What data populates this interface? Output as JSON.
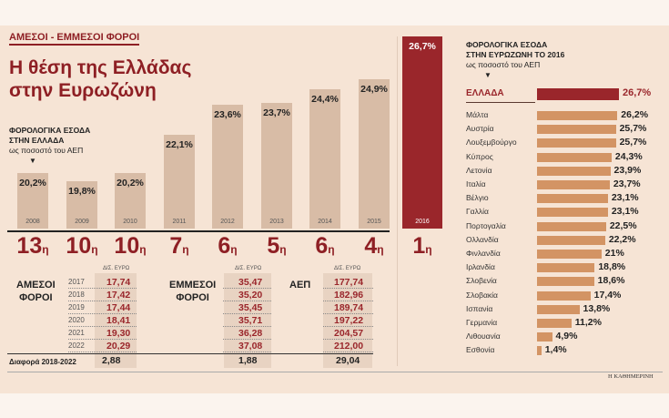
{
  "header": {
    "kicker": "ΑΜΕΣΟΙ - ΕΜΜΕΣΟΙ ΦΟΡΟΙ",
    "title": "Η θέση της Ελλάδας στην Ευρωζώνη"
  },
  "left_note": {
    "line1": "ΦΟΡΟΛΟΓΙΚΑ ΕΣΟΔΑ",
    "line2": "ΣΤΗΝ ΕΛΛΑΔΑ",
    "line3": "ως ποσοστό του ΑΕΠ",
    "arrow": "▼"
  },
  "right_note": {
    "line1": "ΦΟΡΟΛΟΓΙΚΑ ΕΣΟΔΑ",
    "line2": "ΣΤΗΝ ΕΥΡΩΖΩΝΗ ΤΟ 2016",
    "line3": "ως ποσοστό του ΑΕΠ",
    "arrow": "▼"
  },
  "chart_data": [
    {
      "type": "bar",
      "title": "Φορολογικά έσοδα στην Ελλάδα ως ποσοστό του ΑΕΠ",
      "categories": [
        "2008",
        "2009",
        "2010",
        "2011",
        "2012",
        "2013",
        "2014",
        "2015",
        "2016"
      ],
      "values": [
        20.2,
        19.8,
        20.2,
        22.1,
        23.6,
        23.7,
        24.4,
        24.9,
        26.7
      ],
      "labels": [
        "20,2%",
        "19,8%",
        "20,2%",
        "22,1%",
        "23,6%",
        "23,7%",
        "24,4%",
        "24,9%",
        "26,7%"
      ],
      "ranks": [
        "13",
        "10",
        "10",
        "7",
        "6",
        "5",
        "6",
        "4",
        "1"
      ],
      "rank_suffix": "η",
      "highlight": "2016",
      "colors": {
        "bar": "#d8bca6",
        "highlight": "#9a262b"
      }
    },
    {
      "type": "bar",
      "orientation": "horizontal",
      "title": "Φορολογικά έσοδα στην Ευρωζώνη το 2016 ως ποσοστό του ΑΕΠ",
      "categories": [
        "ΕΛΛΑΔΑ",
        "Μάλτα",
        "Αυστρία",
        "Λουξεμβούργο",
        "Κύπρος",
        "Λετονία",
        "Ιταλία",
        "Βέλγιο",
        "Γαλλία",
        "Πορτογαλία",
        "Ολλανδία",
        "Φινλανδία",
        "Ιρλανδία",
        "Σλοβενία",
        "Σλοβακία",
        "Ισπανία",
        "Γερμανία",
        "Λιθουανία",
        "Εσθονία"
      ],
      "values": [
        26.7,
        26.2,
        25.7,
        25.7,
        24.3,
        23.9,
        23.7,
        23.1,
        23.1,
        22.5,
        22.2,
        21,
        18.8,
        18.6,
        17.4,
        13.8,
        11.2,
        4.9,
        1.4
      ],
      "labels": [
        "26,7%",
        "26,2%",
        "25,7%",
        "25,7%",
        "24,3%",
        "23,9%",
        "23,7%",
        "23,1%",
        "23,1%",
        "22,5%",
        "22,2%",
        "21%",
        "18,8%",
        "18,6%",
        "17,4%",
        "13,8%",
        "11,2%",
        "4,9%",
        "1,4%"
      ],
      "highlight": "ΕΛΛΑΔΑ",
      "colors": {
        "bar": "#d39464",
        "highlight": "#9a262b"
      }
    }
  ],
  "table": {
    "unit": "ΔΙΣ. ΕΥΡΩ",
    "years": [
      "2017",
      "2018",
      "2019",
      "2020",
      "2021",
      "2022"
    ],
    "direct": {
      "label1": "ΑΜΕΣΟΙ",
      "label2": "ΦΟΡΟΙ",
      "values": [
        "17,74",
        "17,42",
        "17,44",
        "18,41",
        "19,30",
        "20,29"
      ],
      "diff": "2,88"
    },
    "indirect": {
      "label1": "ΕΜΜΕΣΟΙ",
      "label2": "ΦΟΡΟΙ",
      "values": [
        "35,47",
        "35,20",
        "35,45",
        "35,71",
        "36,28",
        "37,08"
      ],
      "diff": "1,88"
    },
    "gdp": {
      "label1": "ΑΕΠ",
      "values": [
        "177,74",
        "182,96",
        "189,74",
        "197,22",
        "204,57",
        "212,00"
      ],
      "diff": "29,04"
    },
    "diff_label": "Διαφορά 2018-2022"
  },
  "footer": {
    "brand": "Η ΚΑΘΗΜΕΡΙΝΗ"
  }
}
